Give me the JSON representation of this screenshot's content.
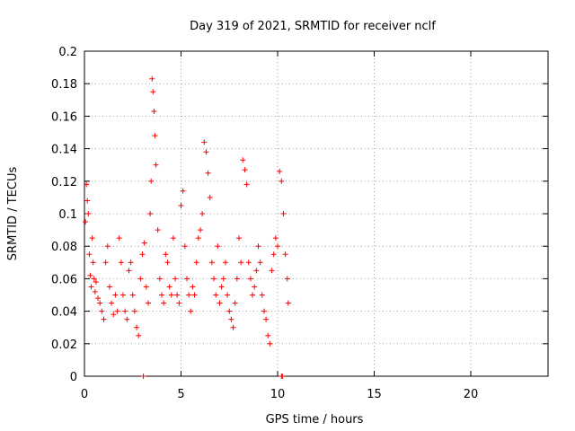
{
  "chart_data": {
    "type": "scatter",
    "title": "Day 319 of 2021, SRMTID for receiver nclf",
    "xlabel": "GPS time / hours",
    "ylabel": "SRMTID / TECUs",
    "xlim": [
      0,
      24
    ],
    "ylim": [
      0,
      0.2
    ],
    "x_ticks": [
      "0",
      "5",
      "10",
      "15",
      "20"
    ],
    "y_ticks": [
      "0",
      "0.02",
      "0.04",
      "0.06",
      "0.08",
      "0.1",
      "0.12",
      "0.14",
      "0.16",
      "0.18",
      "0.2"
    ],
    "grid": true,
    "marker": "+",
    "color": "#ff0000",
    "series": [
      {
        "x": [
          0.05,
          0.1,
          0.15,
          0.2,
          0.25,
          0.3,
          0.35,
          0.4,
          0.45,
          0.5,
          0.55,
          0.6,
          0.7,
          0.8,
          0.9,
          1.0,
          1.1,
          1.2,
          1.3,
          1.4,
          1.5,
          1.6,
          1.7,
          1.8,
          1.9,
          2.0,
          2.1,
          2.2,
          2.3,
          2.4,
          2.5,
          2.6,
          2.7,
          2.8,
          2.9,
          3.0,
          3.1,
          3.2,
          3.3,
          3.4,
          3.45,
          3.5,
          3.55,
          3.6,
          3.65,
          3.7,
          3.8,
          3.9,
          4.0,
          4.1,
          4.2,
          4.3,
          4.4,
          4.5,
          4.6,
          4.7,
          4.8,
          4.9,
          5.0,
          5.1,
          5.2,
          5.3,
          5.4,
          5.5,
          5.6,
          5.7,
          5.8,
          5.9,
          6.0,
          6.1,
          6.2,
          6.3,
          6.4,
          6.5,
          6.6,
          6.7,
          6.8,
          6.9,
          7.0,
          7.1,
          7.2,
          7.3,
          7.4,
          7.5,
          7.6,
          7.7,
          7.8,
          7.9,
          8.0,
          8.1,
          8.2,
          8.3,
          8.4,
          8.5,
          8.6,
          8.7,
          8.8,
          8.9,
          9.0,
          9.1,
          9.2,
          9.3,
          9.4,
          9.5,
          9.6,
          9.7,
          9.8,
          9.9,
          10.0,
          10.1,
          10.2,
          10.3,
          10.4,
          10.5,
          10.55
        ],
        "y": [
          0.095,
          0.118,
          0.108,
          0.1,
          0.075,
          0.062,
          0.055,
          0.085,
          0.07,
          0.06,
          0.052,
          0.058,
          0.048,
          0.045,
          0.04,
          0.035,
          0.07,
          0.08,
          0.055,
          0.045,
          0.038,
          0.05,
          0.04,
          0.085,
          0.07,
          0.05,
          0.04,
          0.035,
          0.065,
          0.07,
          0.05,
          0.04,
          0.03,
          0.025,
          0.06,
          0.075,
          0.082,
          0.055,
          0.045,
          0.1,
          0.12,
          0.183,
          0.175,
          0.163,
          0.148,
          0.13,
          0.09,
          0.06,
          0.05,
          0.045,
          0.075,
          0.07,
          0.055,
          0.05,
          0.085,
          0.06,
          0.05,
          0.045,
          0.105,
          0.114,
          0.08,
          0.06,
          0.05,
          0.04,
          0.055,
          0.05,
          0.07,
          0.085,
          0.09,
          0.1,
          0.144,
          0.138,
          0.125,
          0.11,
          0.07,
          0.06,
          0.05,
          0.08,
          0.045,
          0.055,
          0.06,
          0.07,
          0.05,
          0.04,
          0.035,
          0.03,
          0.045,
          0.06,
          0.085,
          0.07,
          0.133,
          0.127,
          0.118,
          0.07,
          0.06,
          0.05,
          0.055,
          0.065,
          0.08,
          0.07,
          0.05,
          0.04,
          0.035,
          0.025,
          0.02,
          0.065,
          0.075,
          0.085,
          0.08,
          0.126,
          0.12,
          0.1,
          0.075,
          0.06,
          0.045
        ]
      }
    ],
    "zero_points_x": [
      3.05,
      10.2,
      10.25
    ]
  }
}
